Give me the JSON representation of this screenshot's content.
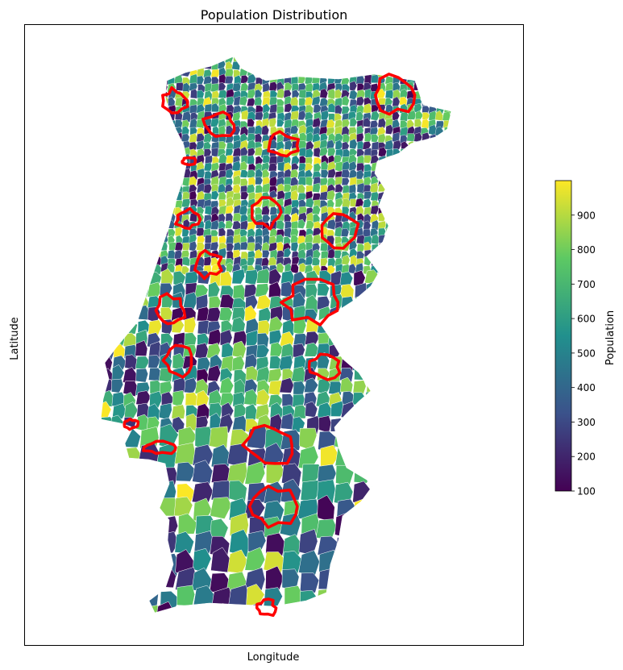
{
  "chart_data": {
    "type": "choropleth-map",
    "title": "Population Distribution",
    "xlabel": "Longitude",
    "ylabel": "Latitude",
    "xticks": [],
    "yticks": [],
    "colormap": "viridis",
    "colormap_stops": [
      "#440154",
      "#3b528b",
      "#21908d",
      "#5dc963",
      "#fde725"
    ],
    "highlight_color": "#ff0000",
    "colorbar": {
      "label": "Population",
      "range": [
        100,
        1000
      ],
      "ticks": [
        {
          "value": 100,
          "label": "100"
        },
        {
          "value": 200,
          "label": "200"
        },
        {
          "value": 300,
          "label": "300"
        },
        {
          "value": 400,
          "label": "400"
        },
        {
          "value": 500,
          "label": "500"
        },
        {
          "value": 600,
          "label": "600"
        },
        {
          "value": 700,
          "label": "700"
        },
        {
          "value": 800,
          "label": "800"
        },
        {
          "value": 900,
          "label": "900"
        }
      ]
    },
    "highlighted_regions_count": 18,
    "grid": false
  }
}
